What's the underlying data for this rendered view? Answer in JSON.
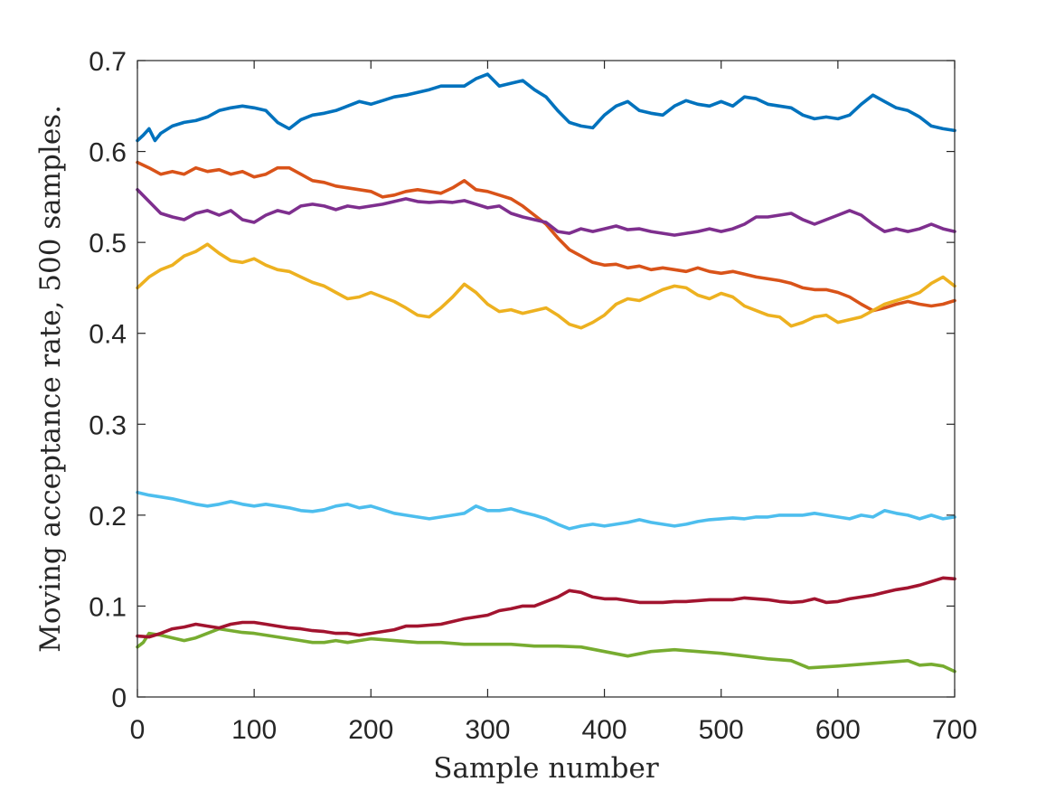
{
  "chart_data": {
    "type": "line",
    "title": "",
    "xlabel": "Sample number",
    "ylabel": "Moving acceptance rate, 500 samples.",
    "xlim": [
      0,
      700
    ],
    "ylim": [
      0,
      0.7
    ],
    "xticks": [
      0,
      100,
      200,
      300,
      400,
      500,
      600,
      700
    ],
    "yticks": [
      0,
      0.1,
      0.2,
      0.3,
      0.4,
      0.5,
      0.6,
      0.7
    ],
    "xtick_labels": [
      "0",
      "100",
      "200",
      "300",
      "400",
      "500",
      "600",
      "700"
    ],
    "ytick_labels": [
      "0",
      "0.1",
      "0.2",
      "0.3",
      "0.4",
      "0.5",
      "0.6",
      "0.7"
    ],
    "grid": false,
    "legend": "none",
    "series": [
      {
        "color": "#0072BD",
        "x": [
          0,
          5,
          10,
          15,
          20,
          30,
          40,
          50,
          60,
          70,
          80,
          90,
          100,
          110,
          120,
          130,
          140,
          150,
          160,
          170,
          180,
          190,
          200,
          210,
          220,
          230,
          240,
          250,
          260,
          270,
          280,
          290,
          300,
          310,
          320,
          330,
          340,
          350,
          360,
          370,
          380,
          390,
          400,
          410,
          420,
          430,
          440,
          450,
          460,
          470,
          480,
          490,
          500,
          510,
          520,
          530,
          540,
          550,
          560,
          570,
          580,
          590,
          600,
          610,
          620,
          630,
          640,
          650,
          660,
          670,
          680,
          690,
          700
        ],
        "y": [
          0.612,
          0.618,
          0.625,
          0.612,
          0.62,
          0.628,
          0.632,
          0.634,
          0.638,
          0.645,
          0.648,
          0.65,
          0.648,
          0.645,
          0.632,
          0.625,
          0.635,
          0.64,
          0.642,
          0.645,
          0.65,
          0.655,
          0.652,
          0.656,
          0.66,
          0.662,
          0.665,
          0.668,
          0.672,
          0.672,
          0.672,
          0.68,
          0.685,
          0.672,
          0.675,
          0.678,
          0.668,
          0.66,
          0.645,
          0.632,
          0.628,
          0.626,
          0.64,
          0.65,
          0.655,
          0.645,
          0.642,
          0.64,
          0.65,
          0.656,
          0.652,
          0.65,
          0.655,
          0.65,
          0.66,
          0.658,
          0.652,
          0.65,
          0.648,
          0.64,
          0.636,
          0.638,
          0.636,
          0.64,
          0.652,
          0.662,
          0.655,
          0.648,
          0.645,
          0.638,
          0.628,
          0.625,
          0.623
        ]
      },
      {
        "color": "#D95319",
        "x": [
          0,
          10,
          20,
          30,
          40,
          50,
          60,
          70,
          80,
          90,
          100,
          110,
          120,
          130,
          140,
          150,
          160,
          170,
          180,
          190,
          200,
          210,
          220,
          230,
          240,
          250,
          260,
          270,
          280,
          290,
          300,
          310,
          320,
          330,
          340,
          350,
          360,
          370,
          380,
          390,
          400,
          410,
          420,
          430,
          440,
          450,
          460,
          470,
          480,
          490,
          500,
          510,
          520,
          530,
          540,
          550,
          560,
          570,
          580,
          590,
          600,
          610,
          620,
          630,
          640,
          650,
          660,
          670,
          680,
          690,
          700
        ],
        "y": [
          0.588,
          0.582,
          0.575,
          0.578,
          0.575,
          0.582,
          0.578,
          0.58,
          0.575,
          0.578,
          0.572,
          0.575,
          0.582,
          0.582,
          0.575,
          0.568,
          0.566,
          0.562,
          0.56,
          0.558,
          0.556,
          0.55,
          0.552,
          0.556,
          0.558,
          0.556,
          0.554,
          0.56,
          0.568,
          0.558,
          0.556,
          0.552,
          0.548,
          0.54,
          0.53,
          0.52,
          0.505,
          0.492,
          0.485,
          0.478,
          0.475,
          0.476,
          0.472,
          0.474,
          0.47,
          0.472,
          0.47,
          0.468,
          0.472,
          0.468,
          0.466,
          0.468,
          0.465,
          0.462,
          0.46,
          0.458,
          0.455,
          0.45,
          0.448,
          0.448,
          0.445,
          0.44,
          0.432,
          0.425,
          0.428,
          0.432,
          0.435,
          0.432,
          0.43,
          0.432,
          0.436
        ]
      },
      {
        "color": "#EDB120",
        "x": [
          0,
          10,
          20,
          30,
          40,
          50,
          60,
          70,
          80,
          90,
          100,
          110,
          120,
          130,
          140,
          150,
          160,
          170,
          180,
          190,
          200,
          210,
          220,
          230,
          240,
          250,
          260,
          270,
          280,
          290,
          300,
          310,
          320,
          330,
          340,
          350,
          360,
          370,
          380,
          390,
          400,
          410,
          420,
          430,
          440,
          450,
          460,
          470,
          480,
          490,
          500,
          510,
          520,
          530,
          540,
          550,
          560,
          570,
          580,
          590,
          600,
          610,
          620,
          630,
          640,
          650,
          660,
          670,
          680,
          690,
          700
        ],
        "y": [
          0.45,
          0.462,
          0.47,
          0.475,
          0.485,
          0.49,
          0.498,
          0.488,
          0.48,
          0.478,
          0.482,
          0.475,
          0.47,
          0.468,
          0.462,
          0.456,
          0.452,
          0.445,
          0.438,
          0.44,
          0.445,
          0.44,
          0.435,
          0.428,
          0.42,
          0.418,
          0.428,
          0.44,
          0.454,
          0.445,
          0.432,
          0.424,
          0.426,
          0.422,
          0.425,
          0.428,
          0.42,
          0.41,
          0.406,
          0.412,
          0.42,
          0.432,
          0.438,
          0.436,
          0.442,
          0.448,
          0.452,
          0.45,
          0.442,
          0.438,
          0.444,
          0.44,
          0.43,
          0.425,
          0.42,
          0.418,
          0.408,
          0.412,
          0.418,
          0.42,
          0.412,
          0.415,
          0.418,
          0.425,
          0.432,
          0.436,
          0.44,
          0.445,
          0.455,
          0.462,
          0.452
        ]
      },
      {
        "color": "#7E2F8E",
        "x": [
          0,
          10,
          20,
          30,
          40,
          50,
          60,
          70,
          80,
          90,
          100,
          110,
          120,
          130,
          140,
          150,
          160,
          170,
          180,
          190,
          200,
          210,
          220,
          230,
          240,
          250,
          260,
          270,
          280,
          290,
          300,
          310,
          320,
          330,
          340,
          350,
          360,
          370,
          380,
          390,
          400,
          410,
          420,
          430,
          440,
          450,
          460,
          470,
          480,
          490,
          500,
          510,
          520,
          530,
          540,
          550,
          560,
          570,
          580,
          590,
          600,
          610,
          620,
          630,
          640,
          650,
          660,
          670,
          680,
          690,
          700
        ],
        "y": [
          0.558,
          0.545,
          0.532,
          0.528,
          0.525,
          0.532,
          0.535,
          0.53,
          0.535,
          0.525,
          0.522,
          0.53,
          0.535,
          0.532,
          0.54,
          0.542,
          0.54,
          0.536,
          0.54,
          0.538,
          0.54,
          0.542,
          0.545,
          0.548,
          0.545,
          0.544,
          0.545,
          0.544,
          0.546,
          0.542,
          0.538,
          0.54,
          0.532,
          0.528,
          0.525,
          0.522,
          0.512,
          0.51,
          0.515,
          0.512,
          0.515,
          0.518,
          0.514,
          0.515,
          0.512,
          0.51,
          0.508,
          0.51,
          0.512,
          0.515,
          0.512,
          0.515,
          0.52,
          0.528,
          0.528,
          0.53,
          0.532,
          0.525,
          0.52,
          0.525,
          0.53,
          0.535,
          0.53,
          0.52,
          0.512,
          0.515,
          0.512,
          0.515,
          0.52,
          0.515,
          0.512
        ]
      },
      {
        "color": "#77AC30",
        "x": [
          0,
          5,
          10,
          20,
          30,
          40,
          50,
          60,
          70,
          80,
          90,
          100,
          110,
          120,
          130,
          140,
          150,
          160,
          170,
          180,
          190,
          200,
          220,
          240,
          260,
          280,
          300,
          320,
          340,
          360,
          380,
          400,
          420,
          440,
          460,
          480,
          500,
          520,
          540,
          560,
          575,
          600,
          620,
          640,
          660,
          670,
          680,
          690,
          700
        ],
        "y": [
          0.055,
          0.06,
          0.07,
          0.068,
          0.065,
          0.062,
          0.065,
          0.07,
          0.075,
          0.073,
          0.071,
          0.07,
          0.068,
          0.066,
          0.064,
          0.062,
          0.06,
          0.06,
          0.062,
          0.06,
          0.062,
          0.064,
          0.062,
          0.06,
          0.06,
          0.058,
          0.058,
          0.058,
          0.056,
          0.056,
          0.055,
          0.05,
          0.045,
          0.05,
          0.052,
          0.05,
          0.048,
          0.045,
          0.042,
          0.04,
          0.032,
          0.034,
          0.036,
          0.038,
          0.04,
          0.035,
          0.036,
          0.034,
          0.028
        ]
      },
      {
        "color": "#4DBEEE",
        "x": [
          0,
          10,
          20,
          30,
          40,
          50,
          60,
          70,
          80,
          90,
          100,
          110,
          120,
          130,
          140,
          150,
          160,
          170,
          180,
          190,
          200,
          210,
          220,
          230,
          240,
          250,
          260,
          270,
          280,
          290,
          300,
          310,
          320,
          330,
          340,
          350,
          360,
          370,
          380,
          390,
          400,
          410,
          420,
          430,
          440,
          450,
          460,
          470,
          480,
          490,
          500,
          510,
          520,
          530,
          540,
          550,
          560,
          570,
          580,
          590,
          600,
          610,
          620,
          630,
          640,
          650,
          660,
          670,
          680,
          690,
          700
        ],
        "y": [
          0.225,
          0.222,
          0.22,
          0.218,
          0.215,
          0.212,
          0.21,
          0.212,
          0.215,
          0.212,
          0.21,
          0.212,
          0.21,
          0.208,
          0.205,
          0.204,
          0.206,
          0.21,
          0.212,
          0.208,
          0.21,
          0.206,
          0.202,
          0.2,
          0.198,
          0.196,
          0.198,
          0.2,
          0.202,
          0.21,
          0.205,
          0.205,
          0.207,
          0.203,
          0.2,
          0.196,
          0.19,
          0.185,
          0.188,
          0.19,
          0.188,
          0.19,
          0.192,
          0.195,
          0.192,
          0.19,
          0.188,
          0.19,
          0.193,
          0.195,
          0.196,
          0.197,
          0.196,
          0.198,
          0.198,
          0.2,
          0.2,
          0.2,
          0.202,
          0.2,
          0.198,
          0.196,
          0.2,
          0.198,
          0.205,
          0.202,
          0.2,
          0.196,
          0.2,
          0.196,
          0.198
        ]
      },
      {
        "color": "#A2142F",
        "x": [
          0,
          10,
          20,
          30,
          40,
          50,
          60,
          70,
          80,
          90,
          100,
          110,
          120,
          130,
          140,
          150,
          160,
          170,
          180,
          190,
          200,
          210,
          220,
          230,
          240,
          250,
          260,
          270,
          280,
          290,
          300,
          310,
          320,
          330,
          340,
          350,
          360,
          370,
          380,
          390,
          400,
          410,
          420,
          430,
          440,
          450,
          460,
          470,
          480,
          490,
          500,
          510,
          520,
          530,
          540,
          550,
          560,
          570,
          580,
          590,
          600,
          610,
          620,
          630,
          640,
          650,
          660,
          670,
          680,
          690,
          700
        ],
        "y": [
          0.067,
          0.066,
          0.07,
          0.075,
          0.077,
          0.08,
          0.078,
          0.076,
          0.08,
          0.082,
          0.082,
          0.08,
          0.078,
          0.076,
          0.075,
          0.073,
          0.072,
          0.07,
          0.07,
          0.068,
          0.07,
          0.072,
          0.074,
          0.078,
          0.078,
          0.079,
          0.08,
          0.083,
          0.086,
          0.088,
          0.09,
          0.095,
          0.097,
          0.1,
          0.1,
          0.105,
          0.11,
          0.117,
          0.115,
          0.11,
          0.108,
          0.108,
          0.106,
          0.104,
          0.104,
          0.104,
          0.105,
          0.105,
          0.106,
          0.107,
          0.107,
          0.107,
          0.109,
          0.108,
          0.107,
          0.105,
          0.104,
          0.105,
          0.108,
          0.104,
          0.105,
          0.108,
          0.11,
          0.112,
          0.115,
          0.118,
          0.12,
          0.123,
          0.127,
          0.131,
          0.13
        ]
      }
    ]
  }
}
